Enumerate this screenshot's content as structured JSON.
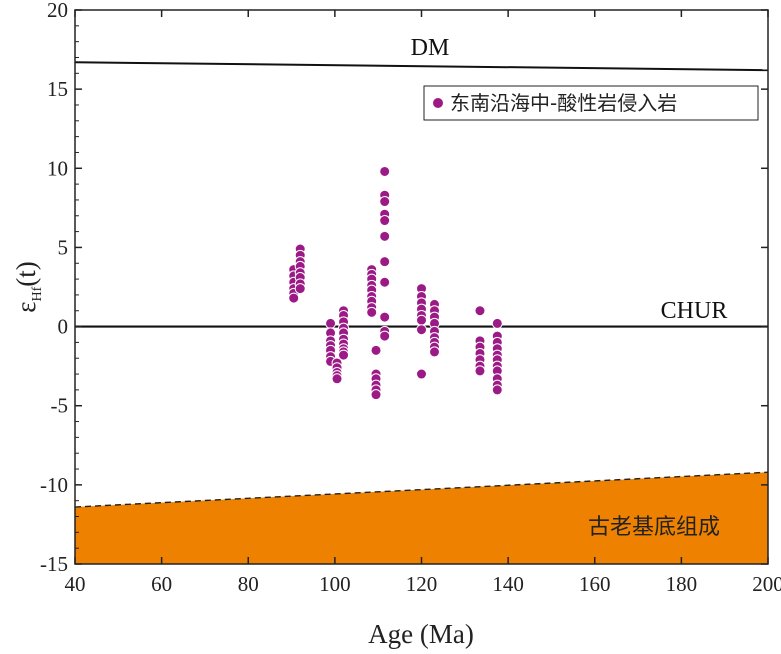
{
  "chart_data": {
    "type": "scatter",
    "xlabel": "Age (Ma)",
    "ylabel": "ε",
    "ylabel_sub": "Hf",
    "ylabel_suffix": "(t)",
    "xlim": [
      40,
      200
    ],
    "ylim": [
      -15,
      20
    ],
    "xticks": [
      40,
      60,
      80,
      100,
      120,
      140,
      160,
      180,
      200
    ],
    "yticks": [
      20,
      15,
      10,
      5,
      0,
      -5,
      -10,
      -15
    ],
    "lines": {
      "dm": {
        "label": "DM",
        "x": [
          40,
          200
        ],
        "y": [
          16.7,
          16.2
        ]
      },
      "chur": {
        "label": "CHUR",
        "x": [
          40,
          200
        ],
        "y": [
          0,
          0
        ]
      },
      "crust": {
        "label": "古老基底组成",
        "x": [
          40,
          200
        ],
        "y": [
          -11.4,
          -9.2
        ],
        "color": "#ee8200"
      }
    },
    "series": [
      {
        "name": "东南沿海中-酸性岩侵入岩",
        "color": "#9c1a86",
        "x": [
          90.5,
          90.5,
          90.5,
          90.5,
          90.5,
          90.5,
          92,
          92,
          92,
          92,
          92,
          92,
          92,
          92,
          99,
          99,
          99,
          99,
          99,
          99,
          99,
          100.5,
          100.5,
          100.5,
          100.5,
          100.5,
          102,
          102,
          102,
          102,
          102,
          102,
          102,
          102,
          102,
          102,
          108.5,
          108.5,
          108.5,
          108.5,
          108.5,
          108.5,
          108.5,
          108.5,
          108.5,
          109.5,
          109.5,
          109.5,
          109.5,
          109.5,
          109.5,
          111.5,
          111.5,
          111.5,
          111.5,
          111.5,
          111.5,
          111.5,
          111.5,
          111.5,
          111.5,
          111.5,
          120,
          120,
          120,
          120,
          120,
          120,
          120,
          120,
          123,
          123,
          123,
          123,
          123,
          123,
          123,
          123,
          123,
          133.5,
          133.5,
          133.5,
          133.5,
          133.5,
          133.5,
          133.5,
          137.5,
          137.5,
          137.5,
          137.5,
          137.5,
          137.5,
          137.5,
          137.5,
          137.5,
          137.5,
          137.5
        ],
        "y": [
          3.6,
          3.2,
          2.8,
          2.4,
          2.1,
          1.8,
          4.9,
          4.5,
          4.1,
          3.8,
          3.4,
          3.1,
          2.7,
          2.4,
          0.2,
          -0.4,
          -0.9,
          -1.2,
          -1.5,
          -1.9,
          -2.2,
          -2.3,
          -2.6,
          -2.9,
          -3.1,
          -3.3,
          1.0,
          0.7,
          0.3,
          -0.1,
          -0.4,
          -0.8,
          -1.1,
          -1.4,
          -1.6,
          -1.8,
          3.6,
          3.3,
          3.0,
          2.6,
          2.3,
          1.9,
          1.6,
          1.2,
          0.9,
          -1.5,
          -3.0,
          -3.3,
          -3.7,
          -4.0,
          -4.3,
          9.8,
          8.3,
          7.9,
          7.1,
          6.7,
          5.7,
          4.1,
          2.8,
          0.6,
          -0.3,
          -0.6,
          2.4,
          1.9,
          1.5,
          1.1,
          0.7,
          0.4,
          -0.2,
          -3.0,
          1.4,
          1.0,
          0.6,
          0.2,
          -0.3,
          -0.7,
          -1.0,
          -1.3,
          -1.6,
          1.0,
          -0.9,
          -1.3,
          -1.7,
          -2.1,
          -2.5,
          -2.8,
          0.2,
          -0.6,
          -1.0,
          -1.4,
          -1.8,
          -2.1,
          -2.5,
          -2.8,
          -3.3,
          -3.7,
          -4.0
        ]
      }
    ]
  }
}
